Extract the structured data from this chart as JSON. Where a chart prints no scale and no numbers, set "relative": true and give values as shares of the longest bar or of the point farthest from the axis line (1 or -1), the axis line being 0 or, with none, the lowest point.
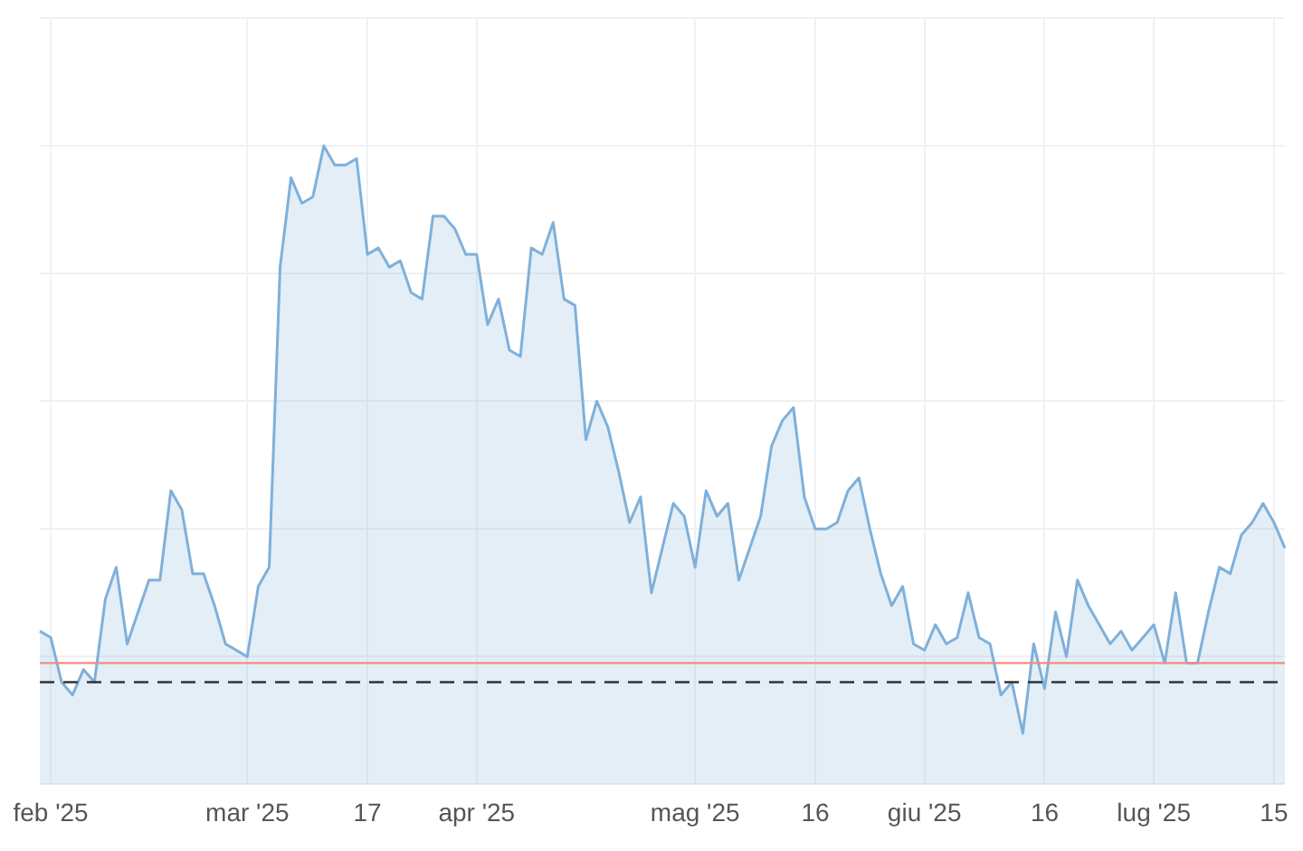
{
  "chart_data": {
    "type": "area",
    "relative": true,
    "grid": true,
    "legend": false,
    "marker": "none",
    "line_style": "solid",
    "categories": [
      null,
      "feb '25",
      null,
      null,
      null,
      null,
      null,
      null,
      null,
      null,
      null,
      null,
      null,
      null,
      null,
      null,
      null,
      null,
      null,
      "mar '25",
      null,
      null,
      null,
      null,
      null,
      null,
      null,
      null,
      null,
      null,
      "17",
      null,
      null,
      null,
      null,
      null,
      null,
      null,
      null,
      null,
      "apr '25",
      null,
      null,
      null,
      null,
      null,
      null,
      null,
      null,
      null,
      null,
      null,
      null,
      null,
      null,
      null,
      null,
      null,
      null,
      null,
      "mag '25",
      null,
      null,
      null,
      null,
      null,
      null,
      null,
      null,
      null,
      null,
      "16",
      null,
      null,
      null,
      null,
      null,
      null,
      null,
      null,
      null,
      "giu '25",
      null,
      null,
      null,
      null,
      null,
      null,
      null,
      null,
      null,
      null,
      "16",
      null,
      null,
      null,
      null,
      null,
      null,
      null,
      null,
      null,
      "lug '25",
      null,
      null,
      null,
      null,
      null,
      null,
      null,
      null,
      null,
      null,
      "15",
      null
    ],
    "series": [
      {
        "color": "#7fb0da",
        "values": [
          0.24,
          0.23,
          0.16,
          0.14,
          0.18,
          0.16,
          0.29,
          0.34,
          0.22,
          0.27,
          0.32,
          0.32,
          0.46,
          0.43,
          0.33,
          0.33,
          0.28,
          0.22,
          0.21,
          0.2,
          0.31,
          0.34,
          0.81,
          0.95,
          0.91,
          0.92,
          1.0,
          0.97,
          0.97,
          0.98,
          0.83,
          0.84,
          0.81,
          0.82,
          0.77,
          0.76,
          0.89,
          0.89,
          0.87,
          0.83,
          0.83,
          0.72,
          0.76,
          0.68,
          0.67,
          0.84,
          0.83,
          0.88,
          0.76,
          0.75,
          0.54,
          0.6,
          0.56,
          0.49,
          0.41,
          0.45,
          0.3,
          0.37,
          0.44,
          0.42,
          0.34,
          0.46,
          0.42,
          0.44,
          0.32,
          0.37,
          0.42,
          0.53,
          0.57,
          0.59,
          0.45,
          0.4,
          0.4,
          0.41,
          0.46,
          0.48,
          0.4,
          0.33,
          0.28,
          0.31,
          0.22,
          0.21,
          0.25,
          0.22,
          0.23,
          0.3,
          0.23,
          0.22,
          0.14,
          0.16,
          0.08,
          0.22,
          0.15,
          0.27,
          0.2,
          0.32,
          0.28,
          0.25,
          0.22,
          0.24,
          0.21,
          0.23,
          0.25,
          0.19,
          0.3,
          0.19,
          0.19,
          0.27,
          0.34,
          0.33,
          0.39,
          0.41,
          0.44,
          0.41,
          0.37
        ]
      }
    ],
    "ref_lines": [
      {
        "axis": "y",
        "value": 0.19,
        "color": "#f28b82",
        "line_style": "solid"
      },
      {
        "axis": "y",
        "value": 0.16,
        "color": "#333333",
        "line_style": "dashed"
      }
    ]
  }
}
